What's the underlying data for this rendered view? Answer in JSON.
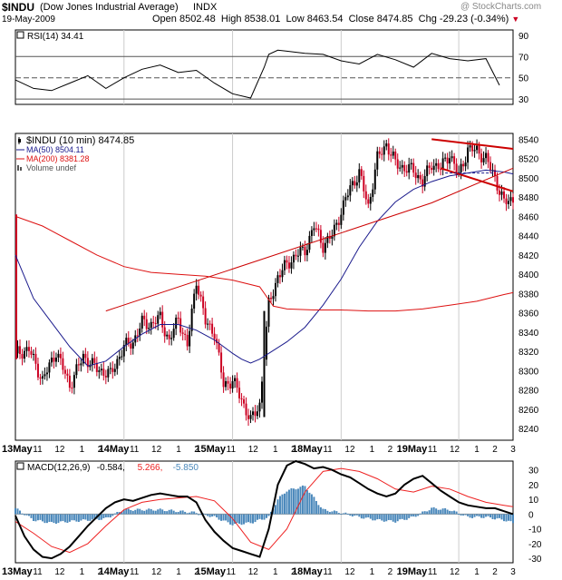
{
  "header": {
    "symbol": "$INDU",
    "name": "(Dow Jones Industrial Average)",
    "exchange": "INDX",
    "watermark": "@ StockCharts.com",
    "date": "19-May-2009",
    "open_label": "Open",
    "open": "8502.48",
    "high_label": "High",
    "high": "8538.01",
    "low_label": "Low",
    "low": "8463.54",
    "close_label": "Close",
    "close": "8474.85",
    "chg_label": "Chg",
    "chg": "-29.23 (-0.34%)",
    "chg_arrow": "▼"
  },
  "colors": {
    "price_up": "#000000",
    "price_down": "#cc0022",
    "ma50": "#1a1a8c",
    "ma200": "#dd1111",
    "trend": "#cc0000",
    "volume": "#4a88bb",
    "macd_line": "#000000",
    "signal": "#ee2222",
    "grid": "#cccccc"
  },
  "rsi_panel": {
    "label": "RSI(14) 34.41",
    "ticks": [
      "90",
      "70",
      "50",
      "30"
    ]
  },
  "price_panel": {
    "legend": [
      {
        "text": "$INDU (10 min) 8474.85",
        "color": "#000000",
        "marker": "candle"
      },
      {
        "text": "MA(50) 8504.11",
        "color": "#1a1a8c",
        "marker": "line"
      },
      {
        "text": "MA(200) 8381.28",
        "color": "#dd1111",
        "marker": "line"
      },
      {
        "text": "Volume undef",
        "color": "#555555",
        "marker": "bars"
      }
    ],
    "ticks": [
      "8540",
      "8520",
      "8500",
      "8480",
      "8460",
      "8440",
      "8420",
      "8400",
      "8380",
      "8360",
      "8340",
      "8320",
      "8300",
      "8280",
      "8260",
      "8240"
    ]
  },
  "macd_panel": {
    "label": "MACD(12,26,9)",
    "values": [
      {
        "text": "-0.584",
        "color": "#000000"
      },
      {
        "text": "5.266",
        "color": "#ee2222"
      },
      {
        "text": "-5.850",
        "color": "#4a88bb"
      }
    ],
    "ticks": [
      "30",
      "20",
      "10",
      "0",
      "-10",
      "-20",
      "-30"
    ]
  },
  "x_axis": {
    "ticks": [
      "13May",
      "11",
      "12",
      "1",
      "2",
      "14May",
      "11",
      "12",
      "1",
      "2",
      "15May",
      "11",
      "12",
      "1",
      "2",
      "18May",
      "11",
      "12",
      "1",
      "2",
      "19May",
      "11",
      "12",
      "1",
      "2",
      "3"
    ]
  },
  "chart_data": [
    {
      "type": "line",
      "title": "RSI(14) 34.41",
      "ylim": [
        25,
        95
      ],
      "reference_lines": [
        70,
        50,
        30
      ],
      "series": [
        {
          "name": "RSI(14)",
          "x": [
            0,
            4,
            8,
            12,
            16,
            20,
            24,
            28,
            32,
            36,
            40,
            44,
            48,
            52,
            55,
            56,
            58,
            60,
            64,
            68,
            72,
            76,
            80,
            84,
            88,
            92,
            96,
            100,
            104,
            107
          ],
          "y": [
            48,
            40,
            38,
            45,
            52,
            40,
            50,
            58,
            62,
            55,
            57,
            45,
            35,
            31,
            60,
            72,
            76,
            75,
            73,
            72,
            66,
            63,
            72,
            67,
            60,
            73,
            68,
            66,
            68,
            43
          ]
        }
      ]
    },
    {
      "type": "line",
      "title": "$INDU (10 min) 8474.85",
      "xlabel": "",
      "ylabel": "",
      "ylim": [
        8228,
        8546
      ],
      "x_unit": "10-minute bars (13 May - 19 May 2009)",
      "series": [
        {
          "name": "$INDU (10 min)",
          "x": [
            0,
            3,
            6,
            9,
            12,
            15,
            18,
            21,
            24,
            26,
            28,
            30,
            32,
            34,
            36,
            38,
            40,
            42,
            44,
            46,
            48,
            50,
            52,
            54,
            56,
            58,
            60,
            62,
            64,
            66,
            68,
            70,
            72,
            74,
            76,
            78,
            80,
            82,
            84,
            86,
            88,
            90,
            92,
            94,
            96,
            98,
            100,
            102,
            104,
            106,
            108,
            110
          ],
          "y": [
            8318,
            8322,
            8290,
            8320,
            8285,
            8315,
            8302,
            8296,
            8325,
            8330,
            8350,
            8348,
            8355,
            8330,
            8355,
            8325,
            8395,
            8350,
            8340,
            8285,
            8290,
            8270,
            8248,
            8265,
            8368,
            8398,
            8410,
            8420,
            8425,
            8450,
            8430,
            8440,
            8465,
            8490,
            8505,
            8470,
            8520,
            8535,
            8515,
            8510,
            8508,
            8495,
            8515,
            8510,
            8525,
            8502,
            8530,
            8528,
            8520,
            8500,
            8474,
            8478
          ]
        },
        {
          "name": "MA(50) 8504.11",
          "x": [
            0,
            4,
            8,
            12,
            16,
            20,
            24,
            28,
            32,
            36,
            40,
            44,
            48,
            50,
            52,
            54,
            56,
            60,
            64,
            68,
            72,
            76,
            80,
            84,
            88,
            92,
            96,
            100,
            104,
            108,
            110
          ],
          "y": [
            8420,
            8375,
            8350,
            8325,
            8305,
            8310,
            8325,
            8338,
            8348,
            8348,
            8342,
            8332,
            8318,
            8312,
            8308,
            8312,
            8318,
            8330,
            8345,
            8368,
            8395,
            8428,
            8455,
            8475,
            8488,
            8496,
            8502,
            8505,
            8508,
            8506,
            8504
          ]
        },
        {
          "name": "MA(200) 8381.28",
          "x": [
            0,
            6,
            12,
            18,
            24,
            30,
            36,
            42,
            48,
            54,
            57,
            60,
            66,
            72,
            78,
            84,
            90,
            96,
            102,
            108,
            110
          ],
          "y": [
            8460,
            8450,
            8435,
            8420,
            8408,
            8402,
            8400,
            8398,
            8394,
            8387,
            8367,
            8364,
            8363,
            8363,
            8362,
            8362,
            8364,
            8368,
            8372,
            8379,
            8381
          ]
        },
        {
          "name": "",
          "x": [
            20,
            56,
            92,
            110
          ],
          "y": [
            8362,
            8418,
            8474,
            8510
          ]
        },
        {
          "name": "",
          "x": [
            92,
            110
          ],
          "y": [
            8540,
            8530
          ]
        },
        {
          "name": "",
          "x": [
            94,
            110
          ],
          "y": [
            8510,
            8486
          ]
        }
      ]
    },
    {
      "type": "line",
      "title": "MACD(12,26,9) -0.584, 5.266, -5.850",
      "ylim": [
        -33,
        36
      ],
      "series": [
        {
          "name": "MACD(12,26,9)",
          "x": [
            0,
            2,
            4,
            6,
            8,
            10,
            12,
            14,
            16,
            18,
            20,
            22,
            24,
            26,
            28,
            30,
            32,
            34,
            36,
            38,
            40,
            42,
            44,
            46,
            48,
            50,
            52,
            54,
            56,
            58,
            60,
            62,
            64,
            66,
            68,
            70,
            72,
            74,
            76,
            78,
            80,
            82,
            84,
            86,
            88,
            90,
            92,
            94,
            96,
            98,
            100,
            102,
            104,
            106,
            108,
            110
          ],
          "y": [
            -1,
            -15,
            -24,
            -29,
            -30,
            -27,
            -22,
            -15,
            -8,
            -2,
            4,
            8,
            10,
            9,
            11,
            13,
            14,
            13,
            12,
            12,
            8,
            -4,
            -12,
            -18,
            -23,
            -25,
            -27,
            -29,
            -10,
            20,
            33,
            36,
            34,
            31,
            32,
            30,
            27,
            25,
            21,
            17,
            14,
            12,
            14,
            20,
            24,
            26,
            21,
            16,
            12,
            8,
            6,
            5,
            4,
            4,
            2,
            0
          ]
        },
        {
          "name": "5.266",
          "x": [
            0,
            4,
            8,
            12,
            16,
            20,
            24,
            28,
            32,
            36,
            40,
            44,
            48,
            52,
            56,
            60,
            64,
            68,
            72,
            76,
            80,
            84,
            88,
            92,
            96,
            100,
            104,
            108,
            110
          ],
          "y": [
            -5,
            -13,
            -22,
            -26,
            -20,
            -8,
            3,
            8,
            10,
            11,
            12,
            9,
            -3,
            -19,
            -24,
            -10,
            15,
            29,
            31,
            29,
            24,
            17,
            15,
            19,
            17,
            12,
            8,
            6,
            5
          ]
        },
        {
          "name": "-5.850",
          "x": [
            0,
            4,
            8,
            12,
            16,
            20,
            24,
            28,
            32,
            36,
            40,
            44,
            48,
            52,
            56,
            58,
            60,
            64,
            68,
            72,
            76,
            80,
            84,
            88,
            92,
            96,
            100,
            104,
            108,
            110
          ],
          "y": [
            4,
            -4,
            -6,
            -5,
            -4,
            -3,
            3,
            3,
            3,
            2,
            1,
            -2,
            -7,
            -6,
            -2,
            10,
            16,
            19,
            3,
            1,
            -2,
            -4,
            -5,
            -2,
            4,
            3,
            -2,
            -2,
            -4,
            -6
          ]
        }
      ]
    }
  ]
}
